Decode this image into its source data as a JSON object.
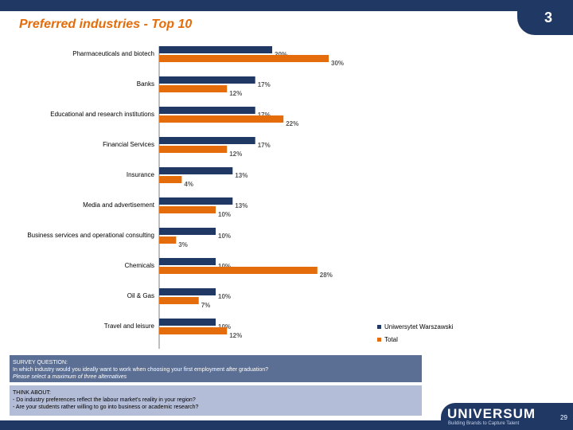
{
  "header": {
    "title": "Preferred industries - Top 10",
    "section_number": "3"
  },
  "chart_data": {
    "type": "bar",
    "orientation": "horizontal",
    "title": "Preferred industries - Top 10",
    "categories": [
      "Pharmaceuticals and biotech",
      "Banks",
      "Educational and research institutions",
      "Financial Services",
      "Insurance",
      "Media and advertisement",
      "Business services and operational consulting",
      "Chemicals",
      "Oil & Gas",
      "Travel and leisure"
    ],
    "series": [
      {
        "name": "Uniwersytet Warszawski",
        "color": "#1f3864",
        "values": [
          20,
          17,
          17,
          17,
          13,
          13,
          10,
          10,
          10,
          10
        ],
        "labels": [
          "20%",
          "17%",
          "17%",
          "17%",
          "13%",
          "13%",
          "10%",
          "10%",
          "10%",
          "10%"
        ]
      },
      {
        "name": "Total",
        "color": "#e46c0a",
        "values": [
          30,
          12,
          22,
          12,
          4,
          10,
          3,
          28,
          7,
          12
        ],
        "labels": [
          "30%",
          "12%",
          "22%",
          "12%",
          "4%",
          "10%",
          "3%",
          "28%",
          "7%",
          "12%"
        ]
      }
    ],
    "xlabel": "",
    "ylabel": "",
    "xlim": [
      0,
      30
    ],
    "legend": "bottom-right"
  },
  "survey": {
    "heading": "SURVEY QUESTION:",
    "question": "In which industry would you ideally want to work when choosing your first employment after graduation?",
    "instruction": "Please select a maximum of three alternatives"
  },
  "think": {
    "heading": "THINK ABOUT:",
    "line1": "- Do industry preferences reflect the labour market's reality in your region?",
    "line2": "- Are your students rather willing to go into business or academic research?"
  },
  "footer": {
    "logo": "UNIVERSUM",
    "tagline": "Building Brands to Capture Talent",
    "page": "29"
  }
}
